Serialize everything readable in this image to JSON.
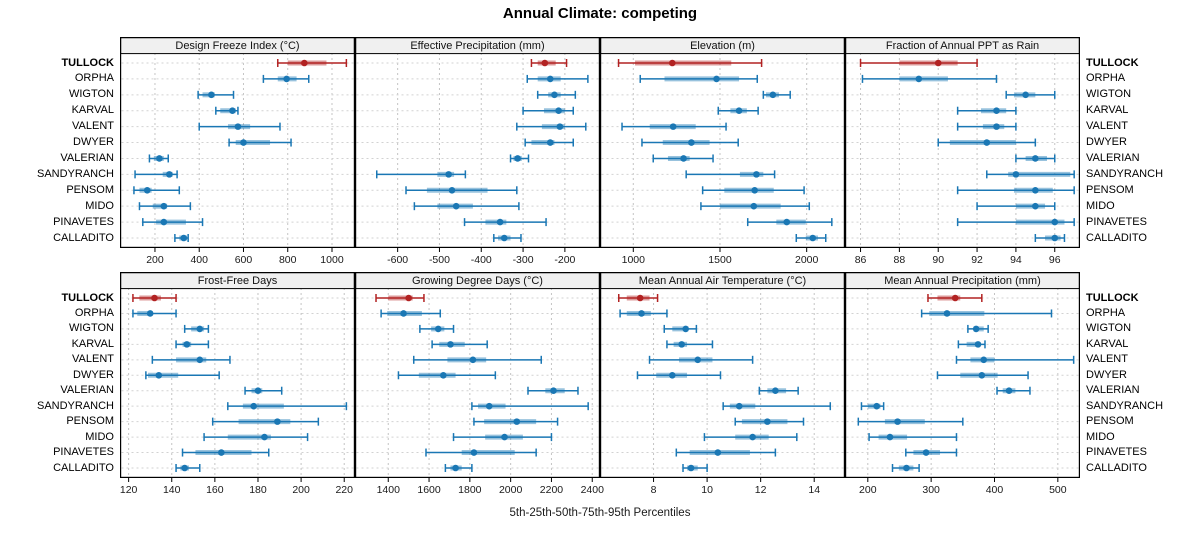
{
  "title": "Annual Climate: competing",
  "footer": "5th-25th-50th-75th-95th Percentiles",
  "percentile_labels": [
    "5th",
    "25th",
    "50th",
    "75th",
    "95th"
  ],
  "sites": [
    "TULLOCK",
    "ORPHA",
    "WIGTON",
    "KARVAL",
    "VALENT",
    "DWYER",
    "VALERIAN",
    "SANDYRANCH",
    "PENSOM",
    "MIDO",
    "PINAVETES",
    "CALLADITO"
  ],
  "highlight_site": "TULLOCK",
  "colors": {
    "highlight": "#b22222",
    "normal": "#1a77b4",
    "grid": "#c4c4c4",
    "row_line": "#d2d2d2",
    "header_bg": "#f0f0f0",
    "border": "#000000",
    "tick_text": "#1a1a1a"
  },
  "chart_data": [
    {
      "type": "dotplot-percentiles",
      "row": 0,
      "col": 0,
      "title": "Design Freeze Index (°C)",
      "ticks": [
        200,
        400,
        600,
        800,
        1000
      ],
      "xlim": [
        42,
        1104
      ],
      "values": [
        [
          755,
          800,
          875,
          975,
          1065
        ],
        [
          690,
          755,
          795,
          840,
          895
        ],
        [
          395,
          415,
          455,
          470,
          555
        ],
        [
          475,
          495,
          550,
          565,
          575
        ],
        [
          400,
          530,
          575,
          630,
          765
        ],
        [
          535,
          565,
          600,
          720,
          815
        ],
        [
          175,
          195,
          220,
          240,
          260
        ],
        [
          110,
          235,
          265,
          280,
          300
        ],
        [
          105,
          130,
          165,
          185,
          310
        ],
        [
          130,
          190,
          240,
          255,
          360
        ],
        [
          145,
          205,
          240,
          340,
          415
        ],
        [
          290,
          310,
          330,
          345,
          350
        ]
      ]
    },
    {
      "type": "dotplot-percentiles",
      "row": 0,
      "col": 1,
      "title": "Effective Precipitation (mm)",
      "ticks": [
        -600,
        -500,
        -400,
        -300,
        -200
      ],
      "xlim": [
        -702,
        -116
      ],
      "values": [
        [
          -280,
          -265,
          -248,
          -222,
          -196
        ],
        [
          -290,
          -265,
          -235,
          -210,
          -145
        ],
        [
          -265,
          -240,
          -225,
          -210,
          -175
        ],
        [
          -300,
          -250,
          -215,
          -200,
          -180
        ],
        [
          -315,
          -255,
          -212,
          -200,
          -150
        ],
        [
          -295,
          -280,
          -235,
          -225,
          -180
        ],
        [
          -330,
          -323,
          -313,
          -303,
          -287
        ],
        [
          -650,
          -505,
          -478,
          -465,
          -438
        ],
        [
          -580,
          -530,
          -470,
          -385,
          -315
        ],
        [
          -560,
          -505,
          -460,
          -420,
          -310
        ],
        [
          -440,
          -390,
          -355,
          -340,
          -245
        ],
        [
          -370,
          -360,
          -345,
          -330,
          -305
        ]
      ]
    },
    {
      "type": "dotplot-percentiles",
      "row": 0,
      "col": 2,
      "title": "Elevation (m)",
      "ticks": [
        1000,
        1500,
        2000
      ],
      "xlim": [
        808,
        2221
      ],
      "values": [
        [
          915,
          1010,
          1225,
          1565,
          1740
        ],
        [
          1040,
          1180,
          1480,
          1610,
          1715
        ],
        [
          1750,
          1765,
          1805,
          1840,
          1905
        ],
        [
          1490,
          1560,
          1610,
          1655,
          1720
        ],
        [
          935,
          1095,
          1230,
          1360,
          1535
        ],
        [
          1050,
          1170,
          1335,
          1440,
          1605
        ],
        [
          1115,
          1200,
          1290,
          1325,
          1460
        ],
        [
          1305,
          1615,
          1710,
          1750,
          1815
        ],
        [
          1400,
          1525,
          1700,
          1810,
          1985
        ],
        [
          1390,
          1500,
          1695,
          1850,
          2015
        ],
        [
          1660,
          1825,
          1885,
          1995,
          2145
        ],
        [
          1940,
          1995,
          2035,
          2065,
          2110
        ]
      ]
    },
    {
      "type": "dotplot-percentiles",
      "row": 0,
      "col": 3,
      "title": "Fraction of Annual PPT as Rain",
      "ticks": [
        86,
        88,
        90,
        92,
        94,
        96
      ],
      "xlim": [
        85.2,
        97.3
      ],
      "values": [
        [
          86,
          88,
          90,
          91,
          92
        ],
        [
          86.1,
          88,
          89,
          90.5,
          93
        ],
        [
          93.5,
          93.9,
          94.5,
          95,
          96
        ],
        [
          91,
          92.2,
          93,
          93.5,
          94
        ],
        [
          91,
          92.3,
          93,
          93.4,
          94
        ],
        [
          90,
          90.6,
          92.5,
          94,
          95
        ],
        [
          94,
          94.5,
          95,
          95.6,
          96
        ],
        [
          92.5,
          93.6,
          94,
          96.8,
          97
        ],
        [
          91,
          93.9,
          95,
          95.9,
          97
        ],
        [
          92,
          94,
          95,
          95.5,
          96
        ],
        [
          91,
          94,
          96,
          96.5,
          97
        ],
        [
          95,
          95.5,
          96,
          96.3,
          96.5
        ]
      ]
    },
    {
      "type": "dotplot-percentiles",
      "row": 1,
      "col": 0,
      "title": "Frost-Free Days",
      "ticks": [
        120,
        140,
        160,
        180,
        200,
        220
      ],
      "xlim": [
        116,
        225
      ],
      "values": [
        [
          122,
          125,
          132,
          135,
          142
        ],
        [
          122,
          124,
          130,
          131,
          142
        ],
        [
          146,
          149,
          153,
          155,
          157
        ],
        [
          142,
          145,
          147,
          149,
          157
        ],
        [
          131,
          142,
          153,
          156,
          167
        ],
        [
          128,
          129,
          134,
          143,
          162
        ],
        [
          174,
          177,
          180,
          182,
          191
        ],
        [
          166,
          173,
          178,
          192,
          221
        ],
        [
          159,
          171,
          189,
          195,
          208
        ],
        [
          155,
          166,
          183,
          186,
          203
        ],
        [
          145,
          151,
          163,
          177,
          185
        ],
        [
          142,
          144,
          146,
          148,
          153
        ]
      ]
    },
    {
      "type": "dotplot-percentiles",
      "row": 1,
      "col": 1,
      "title": "Growing Degree Days (°C)",
      "ticks": [
        1400,
        1600,
        1800,
        2000,
        2200,
        2400
      ],
      "xlim": [
        1237,
        2438
      ],
      "values": [
        [
          1340,
          1400,
          1500,
          1520,
          1575
        ],
        [
          1365,
          1395,
          1475,
          1565,
          1655
        ],
        [
          1555,
          1610,
          1645,
          1675,
          1720
        ],
        [
          1615,
          1650,
          1705,
          1775,
          1885
        ],
        [
          1525,
          1690,
          1815,
          1880,
          2150
        ],
        [
          1450,
          1550,
          1670,
          1730,
          1925
        ],
        [
          2085,
          2170,
          2210,
          2265,
          2330
        ],
        [
          1810,
          1840,
          1895,
          1975,
          2380
        ],
        [
          1820,
          1870,
          2030,
          2125,
          2230
        ],
        [
          1720,
          1875,
          1970,
          2060,
          2200
        ],
        [
          1585,
          1760,
          1820,
          2020,
          2125
        ],
        [
          1680,
          1705,
          1730,
          1760,
          1810
        ]
      ]
    },
    {
      "type": "dotplot-percentiles",
      "row": 1,
      "col": 2,
      "title": "Mean Annual Air Temperature (°C)",
      "ticks": [
        8,
        10,
        12,
        14
      ],
      "xlim": [
        6.0,
        15.15
      ],
      "values": [
        [
          6.7,
          7.0,
          7.5,
          7.85,
          8.15
        ],
        [
          6.75,
          7.0,
          7.55,
          7.9,
          8.5
        ],
        [
          8.4,
          8.7,
          9.2,
          9.3,
          9.6
        ],
        [
          8.5,
          8.75,
          9.05,
          9.25,
          10.2
        ],
        [
          7.85,
          8.95,
          9.65,
          10.2,
          11.7
        ],
        [
          7.4,
          8.1,
          8.7,
          9.25,
          10.5
        ],
        [
          11.95,
          12.25,
          12.55,
          12.95,
          13.4
        ],
        [
          10.6,
          10.85,
          11.2,
          11.8,
          14.6
        ],
        [
          11.05,
          11.3,
          12.25,
          13.0,
          13.6
        ],
        [
          9.9,
          11.05,
          11.7,
          12.3,
          13.35
        ],
        [
          8.85,
          9.35,
          10.4,
          11.6,
          12.55
        ],
        [
          9.1,
          9.25,
          9.4,
          9.65,
          10.0
        ]
      ]
    },
    {
      "type": "dotplot-percentiles",
      "row": 1,
      "col": 3,
      "title": "Mean Annual Precipitation (mm)",
      "ticks": [
        200,
        300,
        400,
        500
      ],
      "xlim": [
        164,
        535
      ],
      "values": [
        [
          295,
          310,
          338,
          346,
          380
        ],
        [
          285,
          297,
          325,
          384,
          490
        ],
        [
          358,
          367,
          371,
          383,
          390
        ],
        [
          343,
          356,
          374,
          377,
          385
        ],
        [
          340,
          362,
          383,
          400,
          525
        ],
        [
          310,
          346,
          380,
          405,
          453
        ],
        [
          404,
          413,
          423,
          433,
          456
        ],
        [
          190,
          200,
          214,
          220,
          225
        ],
        [
          185,
          227,
          247,
          290,
          350
        ],
        [
          202,
          217,
          235,
          262,
          340
        ],
        [
          260,
          272,
          292,
          314,
          340
        ],
        [
          239,
          249,
          261,
          272,
          281
        ]
      ]
    }
  ]
}
